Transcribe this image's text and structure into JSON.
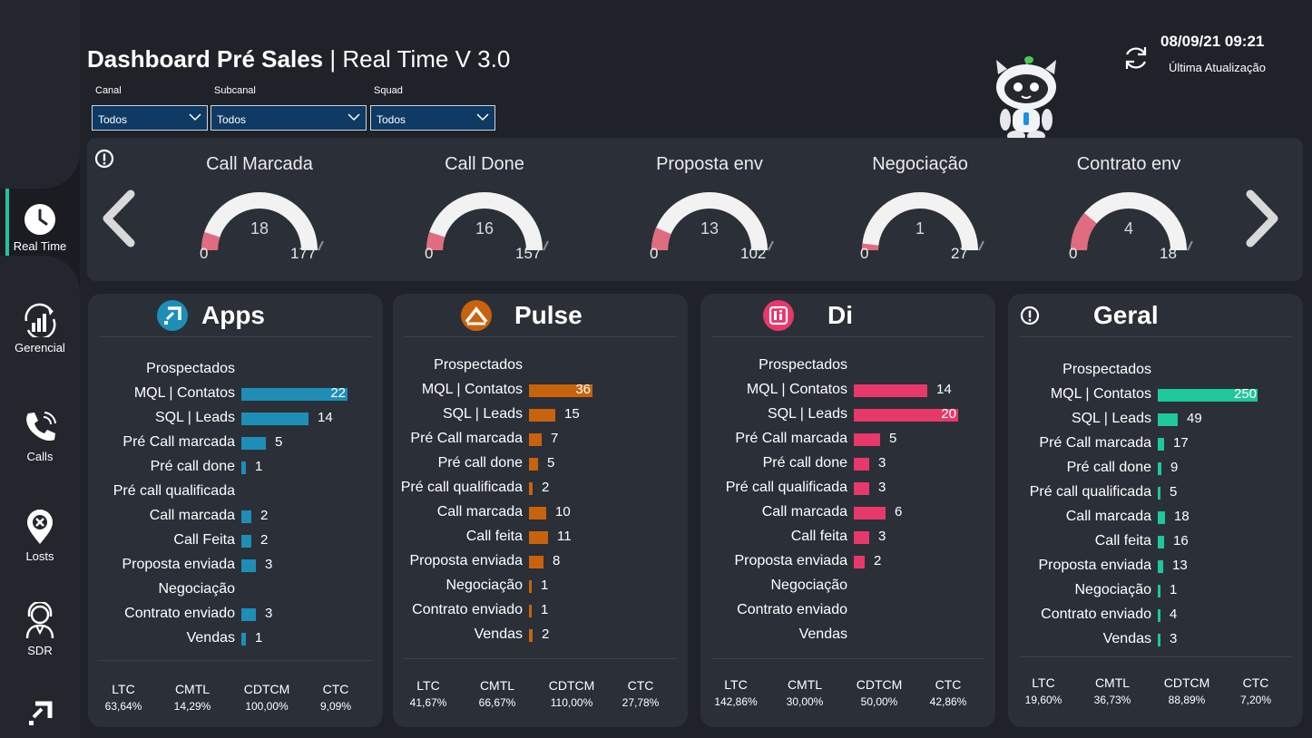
{
  "sidebar": {
    "items": [
      {
        "label": "Real Time",
        "icon": "clock-icon",
        "active": true
      },
      {
        "label": "Gerencial",
        "icon": "chart-growth-icon"
      },
      {
        "label": "Calls",
        "icon": "phone-icon"
      },
      {
        "label": "Losts",
        "icon": "location-x-icon"
      },
      {
        "label": "SDR",
        "icon": "headset-person-icon"
      }
    ],
    "bottom_logo": "apps-logo-icon"
  },
  "header": {
    "title_bold": "Dashboard Pré Sales",
    "title_rest": " | Real Time V 3.0",
    "last_update_time": "08/09/21 09:21",
    "last_update_label": "Última Atualização"
  },
  "filters": [
    {
      "label": "Canal",
      "value": "Todos"
    },
    {
      "label": "Subcanal",
      "value": "Todos"
    },
    {
      "label": "Squad",
      "value": "Todos"
    }
  ],
  "gauges": [
    {
      "title": "Call Marcada",
      "value": 18,
      "min": 0,
      "max": 177
    },
    {
      "title": "Call Done",
      "value": 16,
      "min": 0,
      "max": 157
    },
    {
      "title": "Proposta env",
      "value": 13,
      "min": 0,
      "max": 102
    },
    {
      "title": "Negociação",
      "value": 1,
      "min": 0,
      "max": 27
    },
    {
      "title": "Contrato env",
      "value": 4,
      "min": 0,
      "max": 18
    }
  ],
  "funnel_labels_a": [
    "Prospectados",
    "MQL | Contatos",
    "SQL | Leads",
    "Pré Call marcada",
    "Pré call done",
    "Pré call qualificada",
    "Call marcada",
    "Call Feita",
    "Proposta enviada",
    "Negociação",
    "Contrato enviado",
    "Vendas"
  ],
  "funnel_labels_b": [
    "Prospectados",
    "MQL | Contatos",
    "SQL | Leads",
    "Pré Call marcada",
    "Pré call done",
    "Pré call qualificada",
    "Call marcada",
    "Call feita",
    "Proposta enviada",
    "Negociação",
    "Contrato enviado",
    "Vendas"
  ],
  "cards": [
    {
      "name": "Apps",
      "color": "#1d8fb7",
      "logo": "apps-logo-icon",
      "values": [
        null,
        22,
        14,
        5,
        1,
        null,
        2,
        2,
        3,
        null,
        3,
        1
      ],
      "metrics": [
        {
          "name": "LTC",
          "value": "63,64%"
        },
        {
          "name": "CMTL",
          "value": "14,29%"
        },
        {
          "name": "CDTCM",
          "value": "100,00%"
        },
        {
          "name": "CTC",
          "value": "9,09%"
        }
      ]
    },
    {
      "name": "Pulse",
      "color": "#c8630c",
      "logo": "pulse-logo-icon",
      "values": [
        null,
        36,
        15,
        7,
        5,
        2,
        10,
        11,
        8,
        1,
        1,
        2
      ],
      "metrics": [
        {
          "name": "LTC",
          "value": "41,67%"
        },
        {
          "name": "CMTL",
          "value": "66,67%"
        },
        {
          "name": "CDTCM",
          "value": "110,00%"
        },
        {
          "name": "CTC",
          "value": "27,78%"
        }
      ]
    },
    {
      "name": "Di",
      "color": "#e8386a",
      "logo": "di-logo-icon",
      "values": [
        null,
        14,
        20,
        5,
        3,
        3,
        6,
        3,
        2,
        null,
        null,
        null
      ],
      "metrics": [
        {
          "name": "LTC",
          "value": "142,86%"
        },
        {
          "name": "CMTL",
          "value": "30,00%"
        },
        {
          "name": "CDTCM",
          "value": "50,00%"
        },
        {
          "name": "CTC",
          "value": "42,86%"
        }
      ]
    },
    {
      "name": "Geral",
      "color": "#1ec79c",
      "logo": "info-icon",
      "values": [
        null,
        250,
        49,
        17,
        9,
        5,
        18,
        16,
        13,
        1,
        4,
        3
      ],
      "metrics": [
        {
          "name": "LTC",
          "value": "19,60%"
        },
        {
          "name": "CMTL",
          "value": "36,73%"
        },
        {
          "name": "CDTCM",
          "value": "88,89%"
        },
        {
          "name": "CTC",
          "value": "7,20%"
        }
      ]
    }
  ]
}
